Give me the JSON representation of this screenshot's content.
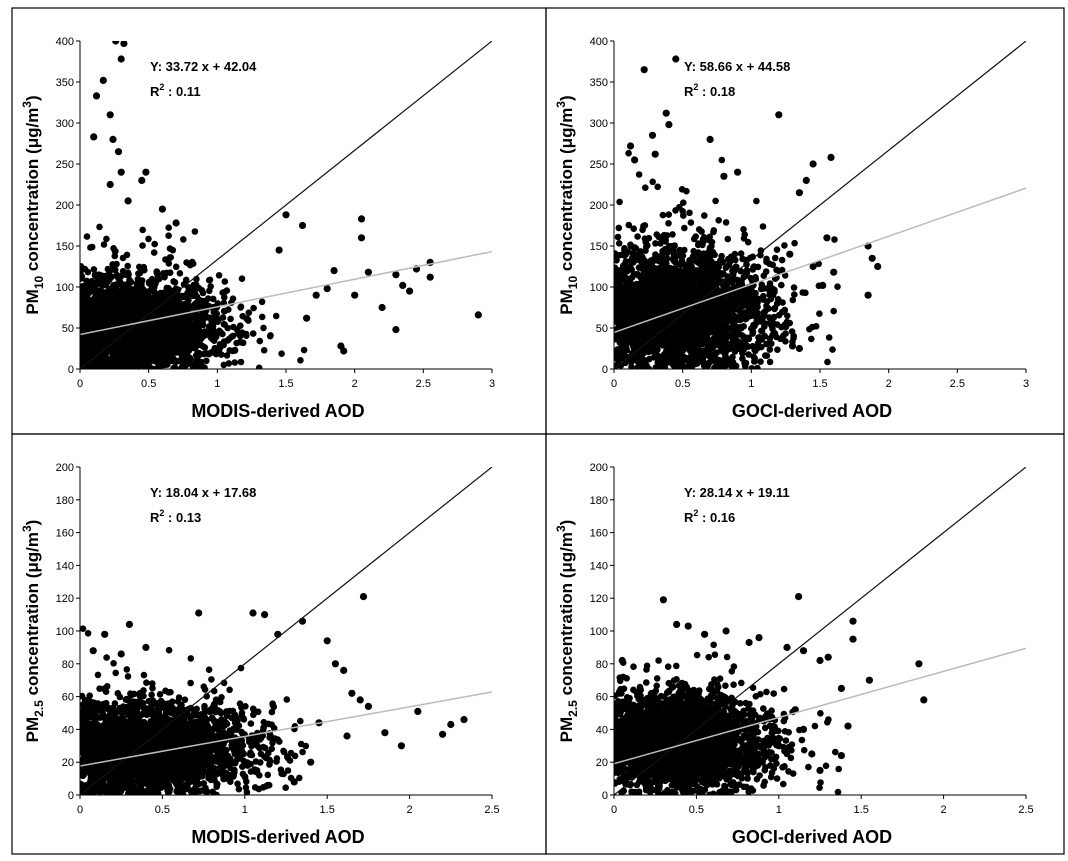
{
  "chart_data": [
    {
      "type": "scatter",
      "xlabel": "MODIS-derived AOD",
      "ylabel_main": "PM",
      "ylabel_sub": "10",
      "ylabel_rest": " concentration (μg/m",
      "ylabel_sup": "3",
      "ylabel_end": ")",
      "xlim": [
        0,
        3
      ],
      "ylim": [
        0,
        400
      ],
      "xticks": [
        0,
        0.5,
        1,
        1.5,
        2,
        2.5,
        3
      ],
      "yticks": [
        0,
        50,
        100,
        150,
        200,
        250,
        300,
        350,
        400
      ],
      "equation": "Y: 33.72 x + 42.04",
      "r2_label": "R",
      "r2_sup": "2",
      "r2_value": " : 0.11",
      "regression": {
        "slope": 33.72,
        "intercept": 42.04
      },
      "one_to_one": {
        "slope": 133.33,
        "intercept": 0
      },
      "cluster": {
        "x_center": 0.38,
        "x_spread": 0.28,
        "y_center": 52,
        "y_spread": 28
      },
      "points": [
        [
          0.1,
          283
        ],
        [
          0.12,
          333
        ],
        [
          0.17,
          352
        ],
        [
          0.22,
          310
        ],
        [
          0.26,
          400
        ],
        [
          0.3,
          378
        ],
        [
          0.32,
          397
        ],
        [
          0.24,
          280
        ],
        [
          0.28,
          265
        ],
        [
          0.3,
          240
        ],
        [
          0.22,
          225
        ],
        [
          0.35,
          205
        ],
        [
          0.45,
          230
        ],
        [
          0.48,
          240
        ],
        [
          0.6,
          195
        ],
        [
          0.7,
          178
        ],
        [
          1.5,
          188
        ],
        [
          1.62,
          175
        ],
        [
          2.05,
          183
        ],
        [
          2.05,
          160
        ],
        [
          1.85,
          120
        ],
        [
          2.1,
          118
        ],
        [
          2.3,
          115
        ],
        [
          2.35,
          102
        ],
        [
          2.55,
          130
        ],
        [
          2.55,
          112
        ],
        [
          2.3,
          48
        ],
        [
          2.2,
          75
        ],
        [
          2.9,
          66
        ],
        [
          1.9,
          28
        ],
        [
          1.92,
          22
        ],
        [
          1.65,
          62
        ],
        [
          1.72,
          90
        ],
        [
          2.4,
          95
        ],
        [
          2.45,
          122
        ],
        [
          1.45,
          145
        ],
        [
          1.8,
          98
        ],
        [
          2.0,
          90
        ]
      ]
    },
    {
      "type": "scatter",
      "xlabel": "GOCI-derived AOD",
      "ylabel_main": "PM",
      "ylabel_sub": "10",
      "ylabel_rest": " concentration (μg/m",
      "ylabel_sup": "3",
      "ylabel_end": ")",
      "xlim": [
        0,
        3
      ],
      "ylim": [
        0,
        400
      ],
      "xticks": [
        0,
        0.5,
        1,
        1.5,
        2,
        2.5,
        3
      ],
      "yticks": [
        0,
        50,
        100,
        150,
        200,
        250,
        300,
        350,
        400
      ],
      "equation": "Y: 58.66 x + 44.58",
      "r2_label": "R",
      "r2_sup": "2",
      "r2_value": " : 0.18",
      "regression": {
        "slope": 58.66,
        "intercept": 44.58
      },
      "one_to_one": {
        "slope": 133.33,
        "intercept": 0
      },
      "cluster": {
        "x_center": 0.48,
        "x_spread": 0.3,
        "y_center": 72,
        "y_spread": 35
      },
      "points": [
        [
          0.22,
          365
        ],
        [
          0.45,
          378
        ],
        [
          0.38,
          312
        ],
        [
          0.28,
          285
        ],
        [
          0.4,
          298
        ],
        [
          0.15,
          255
        ],
        [
          0.3,
          262
        ],
        [
          0.12,
          272
        ],
        [
          0.7,
          280
        ],
        [
          1.2,
          310
        ],
        [
          0.8,
          235
        ],
        [
          0.9,
          240
        ],
        [
          1.45,
          250
        ],
        [
          1.58,
          258
        ],
        [
          1.4,
          230
        ],
        [
          1.35,
          215
        ],
        [
          1.85,
          150
        ],
        [
          1.88,
          135
        ],
        [
          1.92,
          125
        ],
        [
          1.85,
          90
        ],
        [
          1.6,
          118
        ],
        [
          1.52,
          102
        ],
        [
          1.55,
          160
        ],
        [
          1.45,
          125
        ],
        [
          1.3,
          28
        ],
        [
          1.35,
          25
        ],
        [
          1.28,
          140
        ]
      ]
    },
    {
      "type": "scatter",
      "xlabel": "MODIS-derived AOD",
      "ylabel_main": "PM",
      "ylabel_sub": "2.5",
      "ylabel_rest": " concentration (μg/m",
      "ylabel_sup": "3",
      "ylabel_end": ")",
      "xlim": [
        0,
        2.5
      ],
      "ylim": [
        0,
        200
      ],
      "xticks": [
        0,
        0.5,
        1,
        1.5,
        2,
        2.5
      ],
      "yticks": [
        0,
        20,
        40,
        60,
        80,
        100,
        120,
        140,
        160,
        180,
        200
      ],
      "equation": "Y: 18.04 x + 17.68",
      "r2_label": "R",
      "r2_sup": "2",
      "r2_value": " : 0.13",
      "regression": {
        "slope": 18.04,
        "intercept": 17.68
      },
      "one_to_one": {
        "slope": 80,
        "intercept": 0
      },
      "cluster": {
        "x_center": 0.42,
        "x_spread": 0.3,
        "y_center": 28,
        "y_spread": 13
      },
      "points": [
        [
          0.15,
          98
        ],
        [
          0.3,
          104
        ],
        [
          0.25,
          86
        ],
        [
          0.4,
          90
        ],
        [
          0.72,
          111
        ],
        [
          1.05,
          111
        ],
        [
          1.12,
          110
        ],
        [
          1.2,
          98
        ],
        [
          1.35,
          106
        ],
        [
          1.5,
          94
        ],
        [
          1.55,
          80
        ],
        [
          1.6,
          76
        ],
        [
          1.72,
          121
        ],
        [
          1.65,
          62
        ],
        [
          1.7,
          58
        ],
        [
          1.75,
          54
        ],
        [
          1.85,
          38
        ],
        [
          1.95,
          30
        ],
        [
          2.05,
          51
        ],
        [
          2.2,
          37
        ],
        [
          2.25,
          43
        ],
        [
          2.33,
          46
        ],
        [
          1.4,
          20
        ],
        [
          1.45,
          44
        ],
        [
          1.3,
          8
        ],
        [
          1.62,
          36
        ],
        [
          0.08,
          88
        ]
      ]
    },
    {
      "type": "scatter",
      "xlabel": "GOCI-derived AOD",
      "ylabel_main": "PM",
      "ylabel_sub": "2.5",
      "ylabel_rest": " concentration (μg/m",
      "ylabel_sup": "3",
      "ylabel_end": ")",
      "xlim": [
        0,
        2.5
      ],
      "ylim": [
        0,
        200
      ],
      "xticks": [
        0,
        0.5,
        1,
        1.5,
        2,
        2.5
      ],
      "yticks": [
        0,
        20,
        40,
        60,
        80,
        100,
        120,
        140,
        160,
        180,
        200
      ],
      "equation": "Y: 28.14 x + 19.11",
      "r2_label": "R",
      "r2_sup": "2",
      "r2_value": " : 0.16",
      "regression": {
        "slope": 28.14,
        "intercept": 19.11
      },
      "one_to_one": {
        "slope": 80,
        "intercept": 0
      },
      "cluster": {
        "x_center": 0.42,
        "x_spread": 0.22,
        "y_center": 32,
        "y_spread": 14
      },
      "points": [
        [
          0.3,
          119
        ],
        [
          0.38,
          104
        ],
        [
          0.45,
          103
        ],
        [
          0.55,
          98
        ],
        [
          0.68,
          100
        ],
        [
          0.82,
          93
        ],
        [
          0.88,
          96
        ],
        [
          1.12,
          121
        ],
        [
          1.05,
          90
        ],
        [
          1.15,
          88
        ],
        [
          1.25,
          82
        ],
        [
          1.3,
          84
        ],
        [
          1.45,
          106
        ],
        [
          1.45,
          95
        ],
        [
          1.55,
          70
        ],
        [
          1.38,
          65
        ],
        [
          1.42,
          42
        ],
        [
          1.38,
          24
        ],
        [
          1.15,
          40
        ],
        [
          1.2,
          25
        ],
        [
          1.25,
          15
        ],
        [
          1.85,
          80
        ],
        [
          1.88,
          58
        ],
        [
          1.1,
          52
        ],
        [
          1.0,
          30
        ],
        [
          0.9,
          20
        ],
        [
          0.05,
          82
        ]
      ]
    }
  ]
}
